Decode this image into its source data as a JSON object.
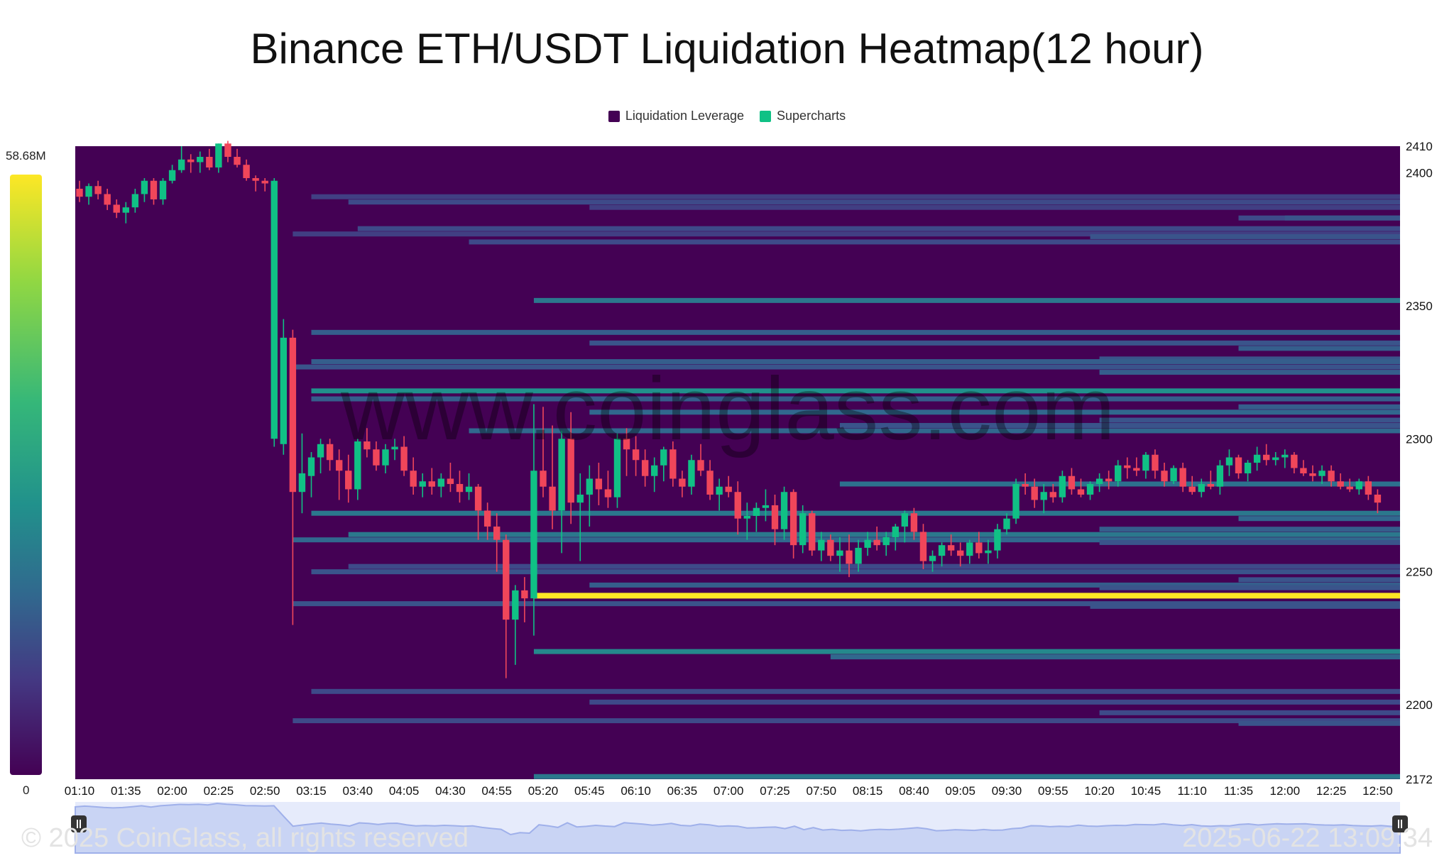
{
  "title": "Binance ETH/USDT Liquidation Heatmap(12 hour)",
  "legend": [
    {
      "label": "Liquidation Leverage",
      "color": "#440154"
    },
    {
      "label": "Supercharts",
      "color": "#10c185"
    }
  ],
  "colorscale": {
    "max_label": "58.68M",
    "min_label": "0"
  },
  "watermark": {
    "site": "www.coinglass.com",
    "copyright": "© 2025 CoinGlass, all rights reserved",
    "timestamp": "2025-06-22 13:09:34"
  },
  "chart_data": {
    "type": "heatmap",
    "title": "Binance ETH/USDT Liquidation Heatmap(12 hour)",
    "colors": {
      "background": "#440154",
      "up": "#10c185",
      "down": "#f0465a"
    },
    "x_tick_labels": [
      "01:10",
      "01:35",
      "02:00",
      "02:25",
      "02:50",
      "03:15",
      "03:40",
      "04:05",
      "04:30",
      "04:55",
      "05:20",
      "05:45",
      "06:10",
      "06:35",
      "07:00",
      "07:25",
      "07:50",
      "08:15",
      "08:40",
      "09:05",
      "09:30",
      "09:55",
      "10:20",
      "10:45",
      "11:10",
      "11:35",
      "12:00",
      "12:25",
      "12:50"
    ],
    "x_tick_interval_minutes": 25,
    "y_tick_labels": [
      2410,
      2400,
      2350,
      2300,
      2250,
      2200,
      2172
    ],
    "ylim": [
      2172,
      2410
    ],
    "y_axis_side": "right",
    "candle_interval_minutes": 5,
    "candles_start": "01:10",
    "candles": [
      [
        2394,
        2397,
        2389,
        2391
      ],
      [
        2391,
        2396,
        2388,
        2395
      ],
      [
        2395,
        2397,
        2390,
        2392
      ],
      [
        2392,
        2394,
        2386,
        2388
      ],
      [
        2388,
        2390,
        2383,
        2385
      ],
      [
        2385,
        2389,
        2381,
        2387
      ],
      [
        2387,
        2394,
        2385,
        2392
      ],
      [
        2392,
        2398,
        2389,
        2397
      ],
      [
        2397,
        2398,
        2388,
        2390
      ],
      [
        2390,
        2398,
        2388,
        2397
      ],
      [
        2397,
        2403,
        2396,
        2401
      ],
      [
        2401,
        2410,
        2400,
        2405
      ],
      [
        2405,
        2407,
        2400,
        2404
      ],
      [
        2404,
        2408,
        2400,
        2406
      ],
      [
        2406,
        2409,
        2401,
        2402
      ],
      [
        2402,
        2411,
        2400,
        2411
      ],
      [
        2411,
        2412,
        2404,
        2406
      ],
      [
        2406,
        2409,
        2402,
        2403
      ],
      [
        2403,
        2405,
        2397,
        2398
      ],
      [
        2398,
        2399,
        2393,
        2397
      ],
      [
        2397,
        2398,
        2393,
        2396
      ],
      [
        2300,
        2398,
        2297,
        2397
      ],
      [
        2298,
        2345,
        2294,
        2338
      ],
      [
        2338,
        2341,
        2230,
        2280
      ],
      [
        2280,
        2302,
        2272,
        2287
      ],
      [
        2286,
        2295,
        2278,
        2293
      ],
      [
        2293,
        2300,
        2287,
        2298
      ],
      [
        2298,
        2300,
        2288,
        2292
      ],
      [
        2292,
        2296,
        2277,
        2288
      ],
      [
        2288,
        2294,
        2276,
        2281
      ],
      [
        2281,
        2300,
        2277,
        2299
      ],
      [
        2299,
        2304,
        2293,
        2296
      ],
      [
        2296,
        2299,
        2288,
        2290
      ],
      [
        2290,
        2298,
        2287,
        2296
      ],
      [
        2296,
        2300,
        2292,
        2297
      ],
      [
        2297,
        2301,
        2286,
        2288
      ],
      [
        2288,
        2293,
        2279,
        2282
      ],
      [
        2282,
        2287,
        2278,
        2284
      ],
      [
        2284,
        2289,
        2279,
        2282
      ],
      [
        2282,
        2287,
        2278,
        2285
      ],
      [
        2285,
        2291,
        2280,
        2283
      ],
      [
        2283,
        2288,
        2276,
        2280
      ],
      [
        2280,
        2287,
        2277,
        2282
      ],
      [
        2282,
        2283,
        2262,
        2273
      ],
      [
        2273,
        2276,
        2262,
        2267
      ],
      [
        2267,
        2272,
        2250,
        2262
      ],
      [
        2262,
        2264,
        2210,
        2232
      ],
      [
        2232,
        2245,
        2215,
        2243
      ],
      [
        2243,
        2248,
        2231,
        2240
      ],
      [
        2240,
        2313,
        2226,
        2288
      ],
      [
        2288,
        2312,
        2278,
        2282
      ],
      [
        2282,
        2305,
        2266,
        2273
      ],
      [
        2273,
        2303,
        2257,
        2300
      ],
      [
        2300,
        2310,
        2268,
        2276
      ],
      [
        2276,
        2287,
        2254,
        2279
      ],
      [
        2279,
        2290,
        2267,
        2285
      ],
      [
        2285,
        2291,
        2275,
        2281
      ],
      [
        2281,
        2288,
        2274,
        2278
      ],
      [
        2278,
        2302,
        2274,
        2300
      ],
      [
        2300,
        2304,
        2286,
        2296
      ],
      [
        2296,
        2301,
        2286,
        2292
      ],
      [
        2292,
        2296,
        2282,
        2286
      ],
      [
        2286,
        2293,
        2280,
        2290
      ],
      [
        2290,
        2297,
        2284,
        2296
      ],
      [
        2296,
        2299,
        2282,
        2285
      ],
      [
        2285,
        2288,
        2278,
        2282
      ],
      [
        2282,
        2294,
        2279,
        2292
      ],
      [
        2292,
        2298,
        2286,
        2288
      ],
      [
        2288,
        2292,
        2277,
        2279
      ],
      [
        2279,
        2285,
        2273,
        2282
      ],
      [
        2282,
        2286,
        2278,
        2280
      ],
      [
        2280,
        2284,
        2264,
        2270
      ],
      [
        2270,
        2276,
        2262,
        2271
      ],
      [
        2271,
        2276,
        2265,
        2274
      ],
      [
        2274,
        2281,
        2269,
        2275
      ],
      [
        2275,
        2279,
        2260,
        2266
      ],
      [
        2266,
        2282,
        2262,
        2280
      ],
      [
        2280,
        2281,
        2255,
        2260
      ],
      [
        2260,
        2275,
        2257,
        2272
      ],
      [
        2272,
        2273,
        2256,
        2258
      ],
      [
        2258,
        2265,
        2254,
        2262
      ],
      [
        2262,
        2264,
        2254,
        2256
      ],
      [
        2256,
        2263,
        2250,
        2258
      ],
      [
        2258,
        2264,
        2248,
        2253
      ],
      [
        2253,
        2262,
        2250,
        2259
      ],
      [
        2259,
        2265,
        2256,
        2262
      ],
      [
        2262,
        2267,
        2258,
        2260
      ],
      [
        2260,
        2265,
        2256,
        2263
      ],
      [
        2263,
        2268,
        2258,
        2267
      ],
      [
        2267,
        2273,
        2261,
        2272
      ],
      [
        2272,
        2274,
        2262,
        2265
      ],
      [
        2265,
        2268,
        2251,
        2254
      ],
      [
        2254,
        2258,
        2250,
        2256
      ],
      [
        2256,
        2261,
        2252,
        2260
      ],
      [
        2260,
        2264,
        2256,
        2258
      ],
      [
        2258,
        2261,
        2252,
        2256
      ],
      [
        2256,
        2262,
        2253,
        2261
      ],
      [
        2261,
        2265,
        2255,
        2257
      ],
      [
        2257,
        2262,
        2253,
        2258
      ],
      [
        2258,
        2268,
        2255,
        2266
      ],
      [
        2266,
        2272,
        2264,
        2270
      ],
      [
        2270,
        2285,
        2268,
        2283
      ],
      [
        2283,
        2287,
        2279,
        2282
      ],
      [
        2282,
        2285,
        2274,
        2277
      ],
      [
        2277,
        2283,
        2272,
        2280
      ],
      [
        2280,
        2283,
        2276,
        2278
      ],
      [
        2278,
        2288,
        2276,
        2286
      ],
      [
        2286,
        2289,
        2279,
        2281
      ],
      [
        2281,
        2285,
        2278,
        2279
      ],
      [
        2279,
        2284,
        2277,
        2283
      ],
      [
        2283,
        2287,
        2280,
        2285
      ],
      [
        2285,
        2288,
        2281,
        2284
      ],
      [
        2284,
        2292,
        2282,
        2290
      ],
      [
        2290,
        2293,
        2285,
        2289
      ],
      [
        2289,
        2293,
        2286,
        2288
      ],
      [
        2288,
        2295,
        2285,
        2294
      ],
      [
        2294,
        2296,
        2285,
        2288
      ],
      [
        2288,
        2291,
        2282,
        2284
      ],
      [
        2284,
        2290,
        2283,
        2289
      ],
      [
        2289,
        2291,
        2280,
        2282
      ],
      [
        2282,
        2286,
        2279,
        2280
      ],
      [
        2280,
        2285,
        2278,
        2283
      ],
      [
        2283,
        2288,
        2281,
        2282
      ],
      [
        2282,
        2292,
        2279,
        2290
      ],
      [
        2290,
        2296,
        2286,
        2293
      ],
      [
        2293,
        2294,
        2285,
        2287
      ],
      [
        2287,
        2292,
        2284,
        2291
      ],
      [
        2291,
        2297,
        2288,
        2294
      ],
      [
        2294,
        2298,
        2290,
        2292
      ],
      [
        2292,
        2295,
        2290,
        2293
      ],
      [
        2293,
        2296,
        2289,
        2294
      ],
      [
        2294,
        2295,
        2287,
        2289
      ],
      [
        2289,
        2292,
        2286,
        2287
      ],
      [
        2287,
        2290,
        2284,
        2286
      ],
      [
        2286,
        2290,
        2283,
        2288
      ],
      [
        2288,
        2290,
        2282,
        2284
      ],
      [
        2284,
        2287,
        2281,
        2282
      ],
      [
        2282,
        2285,
        2280,
        2281
      ],
      [
        2281,
        2285,
        2279,
        2284
      ],
      [
        2284,
        2286,
        2277,
        2279
      ],
      [
        2279,
        2281,
        2272,
        2276
      ]
    ],
    "liquidation_bands": [
      {
        "price": 2391,
        "start": "03:15",
        "intensity": 0.25
      },
      {
        "price": 2389,
        "start": "03:35",
        "intensity": 0.3
      },
      {
        "price": 2387,
        "start": "05:45",
        "intensity": 0.25
      },
      {
        "price": 2383,
        "start": "11:35",
        "intensity": 0.3
      },
      {
        "price": 2383,
        "start": "12:00",
        "intensity": 0.35
      },
      {
        "price": 2379,
        "start": "03:40",
        "intensity": 0.3
      },
      {
        "price": 2377,
        "start": "03:05",
        "intensity": 0.25
      },
      {
        "price": 2376,
        "start": "10:15",
        "intensity": 0.35
      },
      {
        "price": 2374,
        "start": "04:40",
        "intensity": 0.3
      },
      {
        "price": 2352,
        "start": "05:15",
        "intensity": 0.5
      },
      {
        "price": 2340,
        "start": "03:15",
        "intensity": 0.4
      },
      {
        "price": 2336,
        "start": "05:45",
        "intensity": 0.35
      },
      {
        "price": 2334,
        "start": "11:35",
        "intensity": 0.4
      },
      {
        "price": 2330,
        "start": "10:20",
        "intensity": 0.35
      },
      {
        "price": 2329,
        "start": "03:15",
        "intensity": 0.4
      },
      {
        "price": 2327,
        "start": "03:05",
        "intensity": 0.35
      },
      {
        "price": 2325,
        "start": "10:20",
        "intensity": 0.4
      },
      {
        "price": 2318,
        "start": "03:15",
        "intensity": 0.58
      },
      {
        "price": 2315,
        "start": "03:15",
        "intensity": 0.4
      },
      {
        "price": 2312,
        "start": "11:35",
        "intensity": 0.4
      },
      {
        "price": 2310,
        "start": "05:45",
        "intensity": 0.45
      },
      {
        "price": 2307,
        "start": "10:20",
        "intensity": 0.35
      },
      {
        "price": 2305,
        "start": "08:00",
        "intensity": 0.35
      },
      {
        "price": 2303,
        "start": "04:40",
        "intensity": 0.45
      },
      {
        "price": 2283,
        "start": "08:00",
        "intensity": 0.48
      },
      {
        "price": 2272,
        "start": "03:15",
        "intensity": 0.5
      },
      {
        "price": 2270,
        "start": "11:35",
        "intensity": 0.45
      },
      {
        "price": 2266,
        "start": "10:20",
        "intensity": 0.4
      },
      {
        "price": 2264,
        "start": "03:35",
        "intensity": 0.5
      },
      {
        "price": 2262,
        "start": "03:05",
        "intensity": 0.45
      },
      {
        "price": 2261,
        "start": "10:20",
        "intensity": 0.35
      },
      {
        "price": 2252,
        "start": "03:35",
        "intensity": 0.3
      },
      {
        "price": 2250,
        "start": "03:15",
        "intensity": 0.35
      },
      {
        "price": 2247,
        "start": "11:35",
        "intensity": 0.35
      },
      {
        "price": 2245,
        "start": "05:45",
        "intensity": 0.4
      },
      {
        "price": 2244,
        "start": "10:20",
        "intensity": 0.35
      },
      {
        "price": 2241,
        "start": "05:15",
        "intensity": 1.0
      },
      {
        "price": 2238,
        "start": "03:05",
        "intensity": 0.35
      },
      {
        "price": 2237,
        "start": "10:15",
        "intensity": 0.35
      },
      {
        "price": 2220,
        "start": "05:15",
        "intensity": 0.55
      },
      {
        "price": 2218,
        "start": "07:55",
        "intensity": 0.45
      },
      {
        "price": 2205,
        "start": "03:15",
        "intensity": 0.3
      },
      {
        "price": 2201,
        "start": "05:45",
        "intensity": 0.3
      },
      {
        "price": 2197,
        "start": "10:20",
        "intensity": 0.3
      },
      {
        "price": 2194,
        "start": "03:05",
        "intensity": 0.3
      },
      {
        "price": 2193,
        "start": "11:35",
        "intensity": 0.35
      },
      {
        "price": 2173,
        "start": "05:15",
        "intensity": 0.5
      }
    ]
  }
}
